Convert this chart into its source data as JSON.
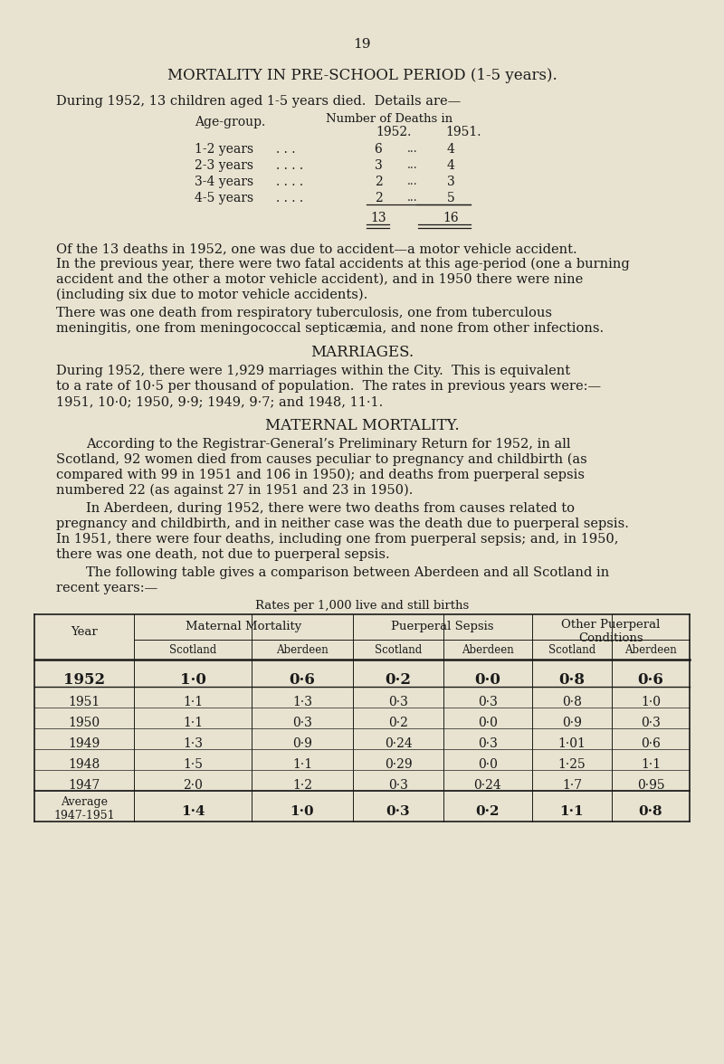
{
  "page_number": "19",
  "bg_color": "#e8e3d0",
  "text_color": "#1a1a1a",
  "title": "MORTALITY IN PRE-SCHOOL PERIOD (1-5 years).",
  "intro_text": "During 1952, 13 children aged 1-5 years died.  Details are—",
  "age_table_header_left": "Age-group.",
  "age_table_header_num": "Number of Deaths in",
  "age_table_header_1952": "1952.",
  "age_table_header_1951": "1951.",
  "age_table_rows": [
    [
      "1-2 years",
      "6",
      "4"
    ],
    [
      "2-3 years",
      "3",
      "4"
    ],
    [
      "3-4 years",
      "2",
      "3"
    ],
    [
      "4-5 years",
      "2",
      "5"
    ]
  ],
  "age_table_dots": [
    ". . .",
    ". . . .",
    ". . . .",
    ". . . ."
  ],
  "age_table_total_1952": "13",
  "age_table_total_1951": "16",
  "para1_lines": [
    "Of the 13 deaths in 1952, one was due to accident—a motor vehicle accident.",
    "In the previous year, there were two fatal accidents at this age-period (one a burning",
    "accident and the other a motor vehicle accident), and in 1950 there were nine",
    "(including six due to motor vehicle accidents)."
  ],
  "para2_lines": [
    "There was one death from respiratory tuberculosis, one from tuberculous",
    "meningitis, one from meningococcal septicæmia, and none from other infections."
  ],
  "marriages_title": "MARRIAGES.",
  "marriages_lines": [
    "During 1952, there were 1,929 marriages within the City.  This is equivalent",
    "to a rate of 10·5 per thousand of population.  The rates in previous years were:—",
    "1951, 10·0; 1950, 9·9; 1949, 9·7; and 1948, 11·1."
  ],
  "maternal_title": "MATERNAL MORTALITY.",
  "maternal_para1_lines": [
    "According to the Registrar-General’s Preliminary Return for 1952, in all",
    "Scotland, 92 women died from causes peculiar to pregnancy and childbirth (as",
    "compared with 99 in 1951 and 106 in 1950); and deaths from puerperal sepsis",
    "numbered 22 (as against 27 in 1951 and 23 in 1950)."
  ],
  "maternal_para2_lines": [
    "In Aberdeen, during 1952, there were two deaths from causes related to",
    "pregnancy and childbirth, and in neither case was the death due to puerperal sepsis.",
    "In 1951, there were four deaths, including one from puerperal sepsis; and, in 1950,",
    "there was one death, not due to puerperal sepsis."
  ],
  "maternal_para3_lines": [
    "The following table gives a comparison between Aberdeen and all Scotland in",
    "recent years:—"
  ],
  "table_caption": "Rates per 1,000 live and still births",
  "table_data": [
    [
      "1952",
      "1·0",
      "0·6",
      "0·2",
      "0·0",
      "0·8",
      "0·6"
    ],
    [
      "1951",
      "1·1",
      "1·3",
      "0·3",
      "0·3",
      "0·8",
      "1·0"
    ],
    [
      "1950",
      "1·1",
      "0·3",
      "0·2",
      "0·0",
      "0·9",
      "0·3"
    ],
    [
      "1949",
      "1·3",
      "0·9",
      "0·24",
      "0·3",
      "1·01",
      "0·6"
    ],
    [
      "1948",
      "1·5",
      "1·1",
      "0·29",
      "0·0",
      "1·25",
      "1·1"
    ],
    [
      "1947",
      "2·0",
      "1·2",
      "0·3",
      "0·24",
      "1·7",
      "0·95"
    ],
    [
      "Average\n1947-1951",
      "1·4",
      "1·0",
      "0·3",
      "0·2",
      "1·1",
      "0·8"
    ]
  ]
}
